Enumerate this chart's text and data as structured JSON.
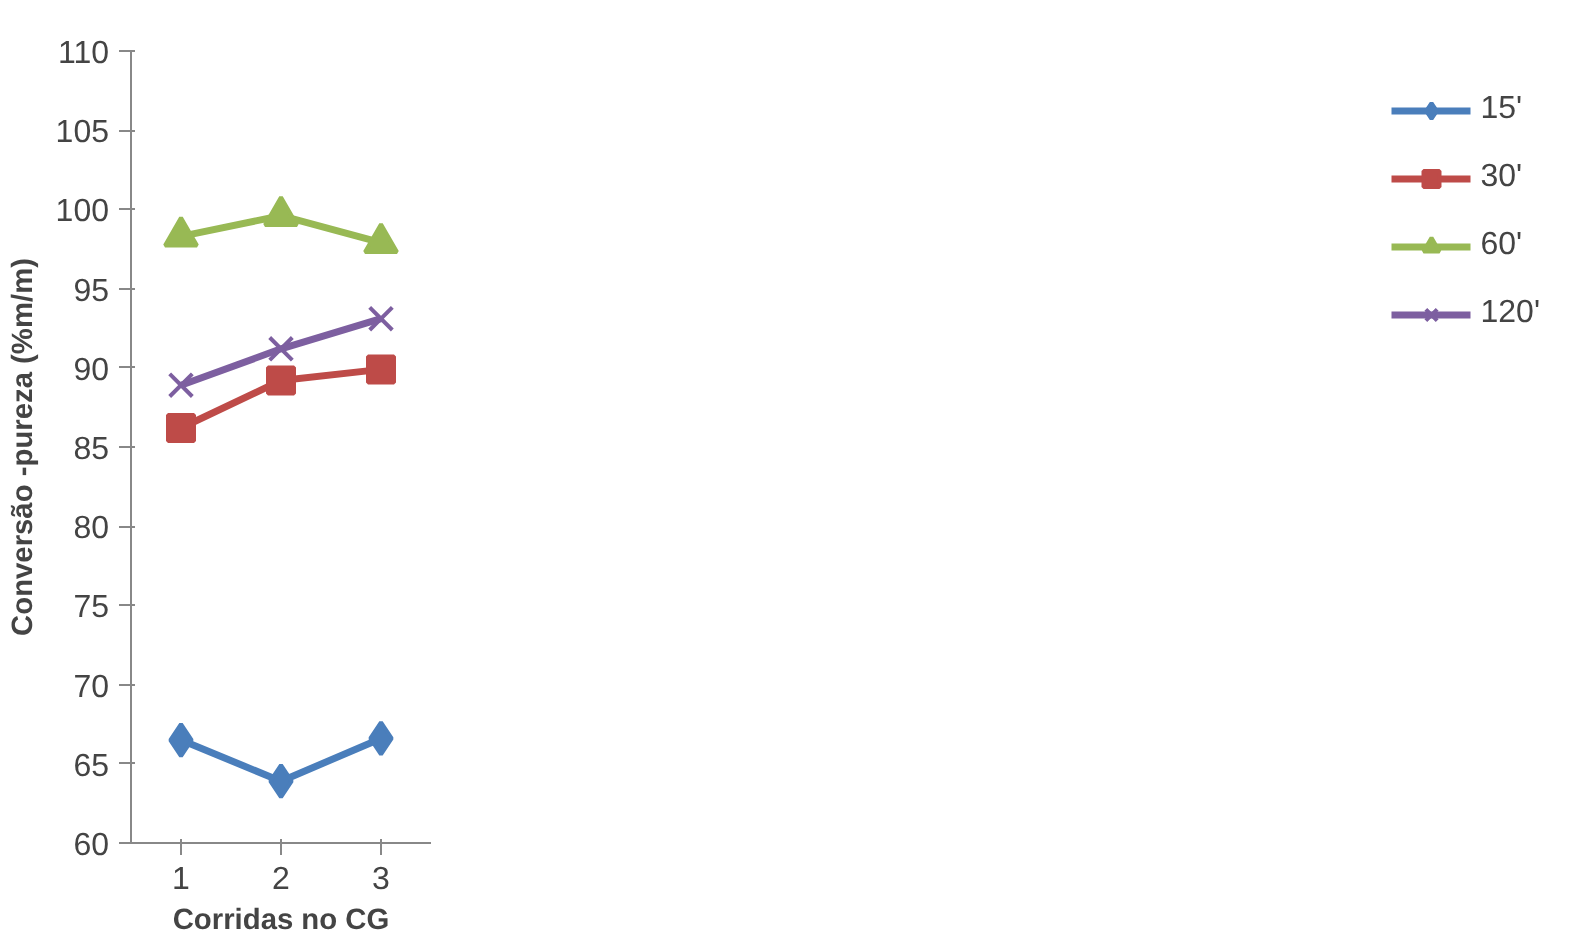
{
  "chart_data": {
    "type": "line",
    "xlabel": "Corridas no CG",
    "ylabel": "Conversão -pureza (%m/m)",
    "categories": [
      "1",
      "2",
      "3"
    ],
    "series": [
      {
        "name": "15'",
        "color": "#4a7ebb",
        "marker": "diamond",
        "values": [
          66.5,
          63.9,
          66.6
        ]
      },
      {
        "name": "30'",
        "color": "#be4b48",
        "marker": "square",
        "values": [
          86.2,
          89.2,
          89.9
        ]
      },
      {
        "name": "60'",
        "color": "#98b954",
        "marker": "triangle",
        "values": [
          98.3,
          99.6,
          97.9
        ]
      },
      {
        "name": "120'",
        "color": "#7d5fa0",
        "marker": "cross",
        "values": [
          88.9,
          91.2,
          93.1
        ]
      }
    ],
    "ylim": [
      60,
      110
    ],
    "yticks": [
      60,
      65,
      70,
      75,
      80,
      85,
      90,
      95,
      100,
      105,
      110
    ],
    "grid": false,
    "legend": "right",
    "line_style": "solid"
  }
}
